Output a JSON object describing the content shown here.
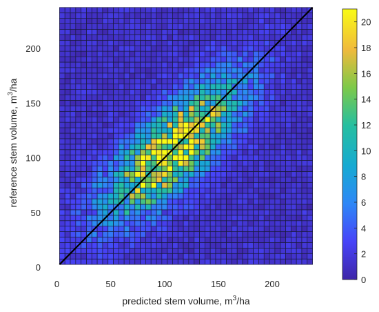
{
  "chart_data": {
    "type": "heatmap",
    "xlabel_main": "predicted stem volume, m",
    "xlabel_sup": "3",
    "xlabel_tail": "/ha",
    "ylabel_main": "reference stem volume, m",
    "ylabel_sup": "3",
    "ylabel_tail": "/ha",
    "xlim": [
      -8,
      248
    ],
    "ylim": [
      -5,
      238
    ],
    "x_ticks": [
      0,
      50,
      100,
      150,
      200
    ],
    "y_ticks": [
      0,
      50,
      100,
      150,
      200
    ],
    "cell_range": [
      2.5,
      237.5
    ],
    "grid_size": 47,
    "identity_line": {
      "from": [
        2.5,
        2.5
      ],
      "to": [
        237.5,
        237.5
      ],
      "color": "#000000"
    },
    "colorbar": {
      "min": 0,
      "max": 21,
      "ticks": [
        0,
        2,
        4,
        6,
        8,
        10,
        12,
        14,
        16,
        18,
        20
      ],
      "colormap": "parula"
    },
    "density_model": {
      "base_count": 1.3,
      "peak_count": 19,
      "peak_center": [
        108,
        108
      ],
      "sigma_along": 55,
      "sigma_across": 20
    }
  }
}
